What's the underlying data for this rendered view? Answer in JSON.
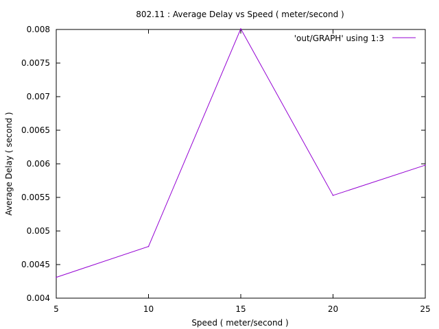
{
  "chart_data": {
    "type": "line",
    "title": "802.11 : Average Delay vs Speed ( meter/second )",
    "xlabel": "Speed ( meter/second )",
    "ylabel": "Average Delay ( second )",
    "xlim": [
      5,
      25
    ],
    "ylim": [
      0.004,
      0.008
    ],
    "xticks": [
      "5",
      "10",
      "15",
      "20",
      "25"
    ],
    "yticks": [
      "0.004",
      "0.0045",
      "0.005",
      "0.0055",
      "0.006",
      "0.0065",
      "0.007",
      "0.0075",
      "0.008"
    ],
    "grid": false,
    "legend_position": "top-right",
    "series": [
      {
        "name": "'out/GRAPH' using 1:3",
        "color": "#9400d3",
        "x": [
          5,
          10,
          15,
          20,
          25
        ],
        "y": [
          0.00431,
          0.00477,
          0.00801,
          0.00553,
          0.00598
        ]
      }
    ]
  }
}
